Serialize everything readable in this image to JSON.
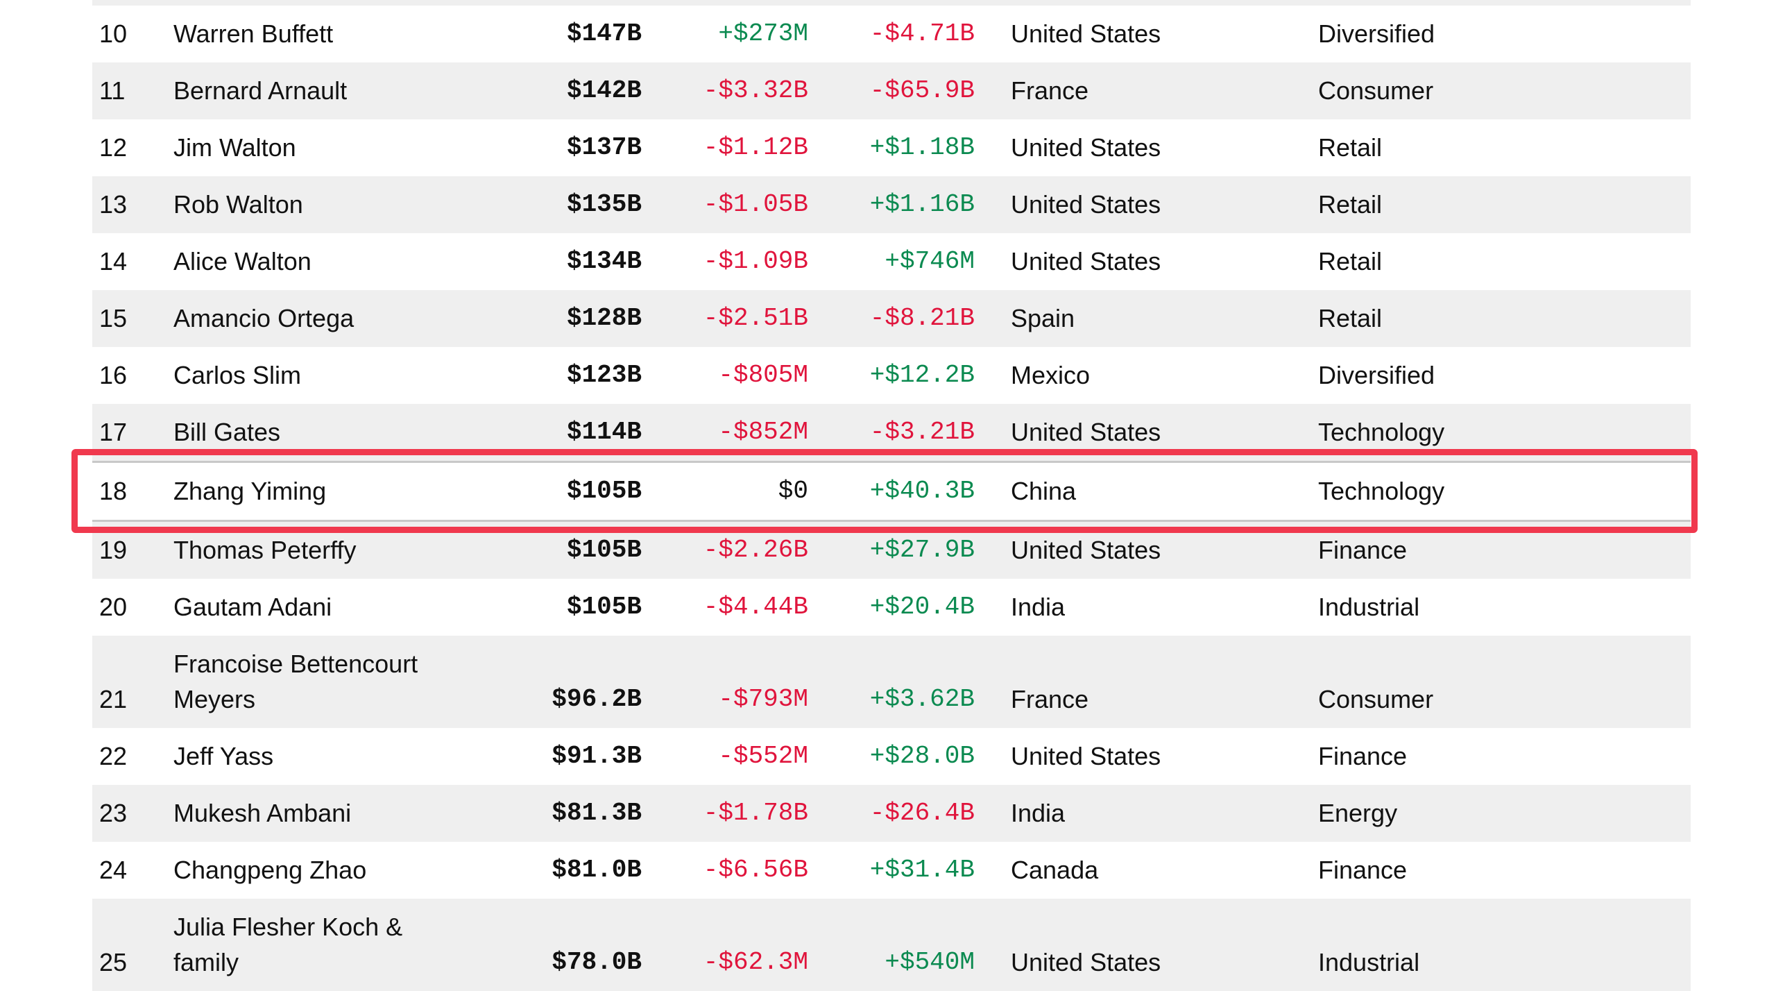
{
  "table": {
    "rows": [
      [
        "10",
        "Warren Buffett",
        "$147B",
        "+$273M",
        "-$4.71B",
        "United States",
        "Diversified"
      ],
      [
        "11",
        "Bernard Arnault",
        "$142B",
        "-$3.32B",
        "-$65.9B",
        "France",
        "Consumer"
      ],
      [
        "12",
        "Jim Walton",
        "$137B",
        "-$1.12B",
        "+$1.18B",
        "United States",
        "Retail"
      ],
      [
        "13",
        "Rob Walton",
        "$135B",
        "-$1.05B",
        "+$1.16B",
        "United States",
        "Retail"
      ],
      [
        "14",
        "Alice Walton",
        "$134B",
        "-$1.09B",
        "+$746M",
        "United States",
        "Retail"
      ],
      [
        "15",
        "Amancio Ortega",
        "$128B",
        "-$2.51B",
        "-$8.21B",
        "Spain",
        "Retail"
      ],
      [
        "16",
        "Carlos Slim",
        "$123B",
        "-$805M",
        "+$12.2B",
        "Mexico",
        "Diversified"
      ],
      [
        "17",
        "Bill Gates",
        "$114B",
        "-$852M",
        "-$3.21B",
        "United States",
        "Technology"
      ],
      [
        "18",
        "Zhang Yiming",
        "$105B",
        "$0",
        "+$40.3B",
        "China",
        "Technology"
      ],
      [
        "19",
        "Thomas Peterffy",
        "$105B",
        "-$2.26B",
        "+$27.9B",
        "United States",
        "Finance"
      ],
      [
        "20",
        "Gautam Adani",
        "$105B",
        "-$4.44B",
        "+$20.4B",
        "India",
        "Industrial"
      ],
      [
        "21",
        "Francoise Bettencourt Meyers",
        "$96.2B",
        "-$793M",
        "+$3.62B",
        "France",
        "Consumer"
      ],
      [
        "22",
        "Jeff Yass",
        "$91.3B",
        "-$552M",
        "+$28.0B",
        "United States",
        "Finance"
      ],
      [
        "23",
        "Mukesh Ambani",
        "$81.3B",
        "-$1.78B",
        "-$26.4B",
        "India",
        "Energy"
      ],
      [
        "24",
        "Changpeng Zhao",
        "$81.0B",
        "-$6.56B",
        "+$31.4B",
        "Canada",
        "Finance"
      ],
      [
        "25",
        "Julia Flesher Koch & family",
        "$78.0B",
        "-$62.3M",
        "+$540M",
        "United States",
        "Industrial"
      ]
    ],
    "highlighted_row": 8
  }
}
